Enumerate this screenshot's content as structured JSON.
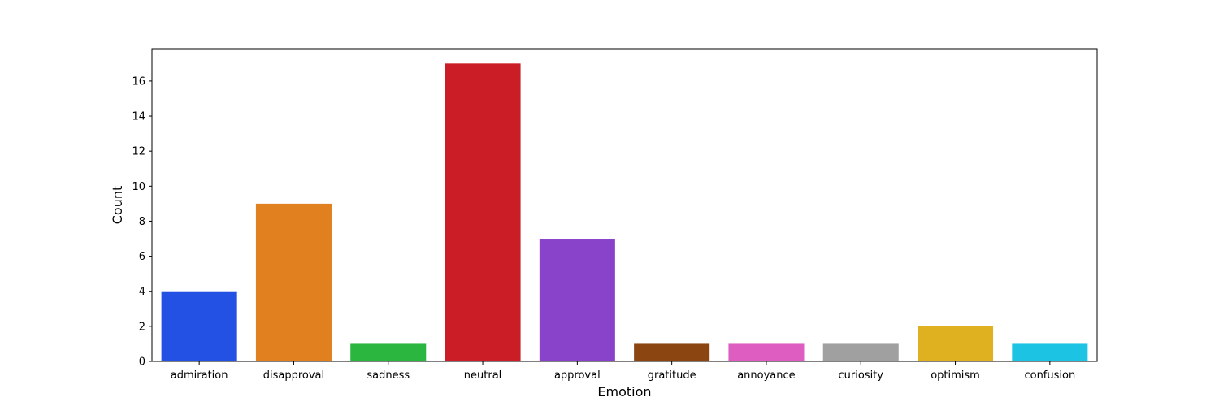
{
  "chart_data": {
    "type": "bar",
    "title": "",
    "xlabel": "Emotion",
    "ylabel": "Count",
    "categories": [
      "admiration",
      "disapproval",
      "sadness",
      "neutral",
      "approval",
      "gratitude",
      "annoyance",
      "curiosity",
      "optimism",
      "confusion"
    ],
    "values": [
      4,
      9,
      1,
      17,
      7,
      1,
      1,
      1,
      2,
      1
    ],
    "colors": [
      "#2351e4",
      "#e1801f",
      "#2bb640",
      "#cb1d25",
      "#8942ca",
      "#8b4511",
      "#dd5ec0",
      "#a0a0a0",
      "#dfb120",
      "#1dc3e3"
    ],
    "ylim": [
      0,
      17.85
    ],
    "yticks": [
      0,
      2,
      4,
      6,
      8,
      10,
      12,
      14,
      16
    ],
    "grid": false,
    "legend": "none"
  }
}
